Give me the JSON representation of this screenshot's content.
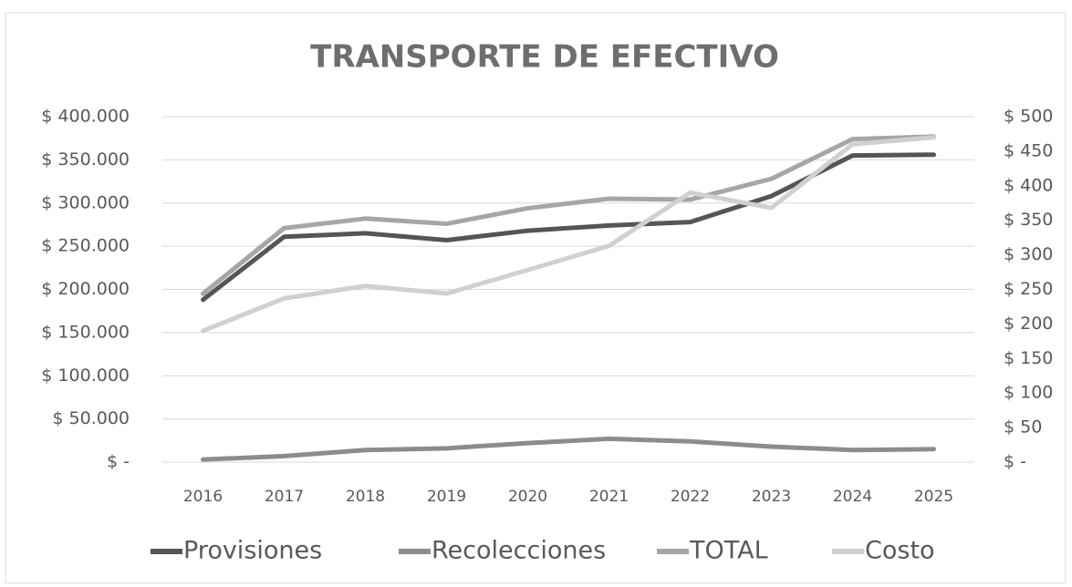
{
  "chart_data": {
    "type": "line",
    "title": "TRANSPORTE DE EFECTIVO",
    "categories": [
      "2016",
      "2017",
      "2018",
      "2019",
      "2020",
      "2021",
      "2022",
      "2023",
      "2024",
      "2025"
    ],
    "series": [
      {
        "name": "Provisiones",
        "color": "#555555",
        "values": [
          188000,
          261000,
          265000,
          257000,
          268000,
          274000,
          278000,
          308000,
          355000,
          356000
        ]
      },
      {
        "name": "Recolecciones",
        "color": "#8c8c8c",
        "values": [
          3000,
          7000,
          14000,
          16000,
          22000,
          27000,
          24000,
          18000,
          14000,
          15000
        ]
      },
      {
        "name": "TOTAL",
        "color": "#a6a6a6",
        "values": [
          195000,
          271000,
          282000,
          276000,
          294000,
          305000,
          304000,
          328000,
          374000,
          377000
        ]
      },
      {
        "name": "Costo",
        "color": "#d0d0d0",
        "axis": "y2",
        "values": [
          190,
          237,
          255,
          244,
          278,
          313,
          390,
          368,
          460,
          470
        ]
      }
    ],
    "ylim": [
      0,
      400000
    ],
    "yticks": [
      {
        "value": 0,
        "label": "$ -"
      },
      {
        "value": 50000,
        "label": "$ 50.000"
      },
      {
        "value": 100000,
        "label": "$ 100.000"
      },
      {
        "value": 150000,
        "label": "$ 150.000"
      },
      {
        "value": 200000,
        "label": "$ 200.000"
      },
      {
        "value": 250000,
        "label": "$ 250.000"
      },
      {
        "value": 300000,
        "label": "$ 300.000"
      },
      {
        "value": 350000,
        "label": "$ 350.000"
      },
      {
        "value": 400000,
        "label": "$ 400.000"
      }
    ],
    "y2lim": [
      0,
      500
    ],
    "y2ticks": [
      {
        "value": 0,
        "label": "$ -"
      },
      {
        "value": 50,
        "label": "$ 50"
      },
      {
        "value": 100,
        "label": "$ 100"
      },
      {
        "value": 150,
        "label": "$ 150"
      },
      {
        "value": 200,
        "label": "$ 200"
      },
      {
        "value": 250,
        "label": "$ 250"
      },
      {
        "value": 300,
        "label": "$ 300"
      },
      {
        "value": 350,
        "label": "$ 350"
      },
      {
        "value": 400,
        "label": "$ 400"
      },
      {
        "value": 450,
        "label": "$ 450"
      },
      {
        "value": 500,
        "label": "$ 500"
      }
    ],
    "grid": true,
    "legend": "bottom"
  }
}
